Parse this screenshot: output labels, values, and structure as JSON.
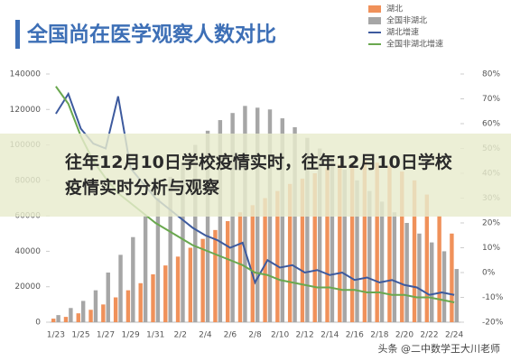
{
  "chart_data": {
    "type": "bar-line",
    "title": "全国尚在医学观察人数对比",
    "categories": [
      "1/23",
      null,
      "1/25",
      null,
      "1/27",
      null,
      "1/29",
      null,
      "1/31",
      null,
      "2/2",
      null,
      "2/4",
      null,
      "2/6",
      null,
      "2/8",
      null,
      "2/10",
      null,
      "2/12",
      null,
      "2/14",
      null,
      "2/16",
      null,
      "2/18",
      null,
      "2/20",
      null,
      "2/22",
      null,
      "2/24"
    ],
    "series": [
      {
        "name": "湖北",
        "color": "#f0915a",
        "kind": "bar",
        "values": [
          2000,
          3000,
          5000,
          7000,
          10000,
          14000,
          18000,
          22000,
          27000,
          32000,
          37000,
          42000,
          47000,
          52000,
          57000,
          62000,
          66000,
          70000,
          74000,
          78000,
          81000,
          84000,
          87000,
          89000,
          90000,
          91000,
          90000,
          88000,
          85000,
          80000,
          72000,
          60000,
          50000
        ]
      },
      {
        "name": "全国非湖北",
        "color": "#a6a6a6",
        "kind": "bar",
        "values": [
          4000,
          8000,
          12000,
          18000,
          28000,
          38000,
          48000,
          60000,
          70000,
          82000,
          90000,
          100000,
          108000,
          114000,
          118000,
          122000,
          121000,
          120000,
          115000,
          110000,
          104000,
          98000,
          92000,
          86000,
          80000,
          74000,
          68000,
          62000,
          56000,
          50000,
          45000,
          40000,
          30000
        ]
      },
      {
        "name": "湖北增速",
        "color": "#3d5a9e",
        "kind": "line",
        "axis": "y2",
        "values": [
          64,
          72,
          58,
          52,
          50,
          71,
          42,
          36,
          30,
          26,
          22,
          18,
          15,
          13,
          10,
          12,
          -4,
          5,
          2,
          3,
          0,
          1,
          -1,
          0,
          -3,
          -2,
          -4,
          -3,
          -5,
          -6,
          -9,
          -8,
          -9
        ]
      },
      {
        "name": "全国非湖北增速",
        "color": "#6aa84f",
        "kind": "line",
        "axis": "y2",
        "values": [
          75,
          68,
          55,
          45,
          38,
          32,
          28,
          24,
          20,
          17,
          14,
          11,
          9,
          7,
          5,
          3,
          0,
          -1,
          -3,
          -4,
          -5,
          -6,
          -6,
          -7,
          -7,
          -8,
          -8,
          -9,
          -9,
          -10,
          -10,
          -11,
          -12
        ]
      }
    ],
    "ylim": [
      0,
      140000
    ],
    "yticks": [
      0,
      20000,
      40000,
      60000,
      80000,
      100000,
      120000,
      140000
    ],
    "y2lim": [
      -20,
      80
    ],
    "y2ticks": [
      {
        "value": -20,
        "label": "-20%"
      },
      {
        "value": -10,
        "label": "-10%"
      },
      {
        "value": 0,
        "label": "0%"
      },
      {
        "value": 10,
        "label": "10%"
      },
      {
        "value": 20,
        "label": "20%"
      },
      {
        "value": 30,
        "label": "30%"
      },
      {
        "value": 40,
        "label": "40%"
      },
      {
        "value": 50,
        "label": "50%"
      },
      {
        "value": 60,
        "label": "60%"
      },
      {
        "value": 70,
        "label": "70%"
      },
      {
        "value": 80,
        "label": "80%"
      }
    ],
    "legend": "top-right"
  },
  "overlay_title": "往年12月10日学校疫情实时，往年12月10日学校疫情实时分析与观察",
  "watermark": "头条 @二中数学王大川老师"
}
